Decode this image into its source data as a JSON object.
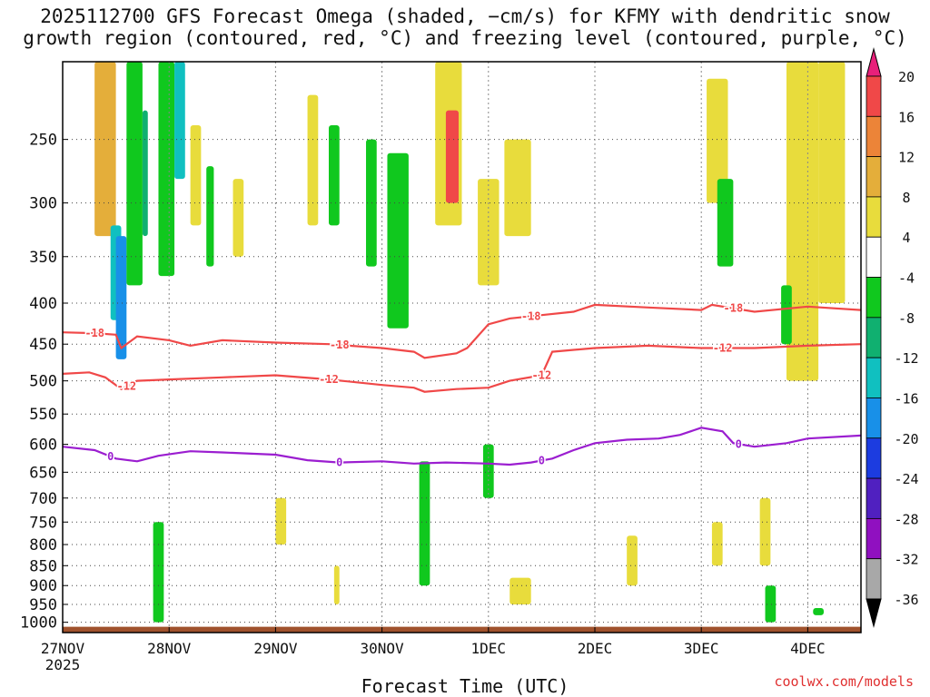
{
  "chart_data": {
    "type": "heatmap",
    "title_line1": "2025112700 GFS Forecast Omega (shaded, −cm/s) for KFMY with dendritic snow",
    "title_line2": "growth region (contoured, red, °C) and freezing level (contoured, purple, °C)",
    "xlabel": "Forecast Time (UTC)",
    "credit": "coolwx.com/models",
    "x_ticks": [
      {
        "label": "27NOV",
        "sub": "2025",
        "day": 0
      },
      {
        "label": "28NOV",
        "sub": "",
        "day": 1
      },
      {
        "label": "29NOV",
        "sub": "",
        "day": 2
      },
      {
        "label": "30NOV",
        "sub": "",
        "day": 3
      },
      {
        "label": "1DEC",
        "sub": "",
        "day": 4
      },
      {
        "label": "2DEC",
        "sub": "",
        "day": 5
      },
      {
        "label": "3DEC",
        "sub": "",
        "day": 6
      },
      {
        "label": "4DEC",
        "sub": "",
        "day": 7
      }
    ],
    "x_range_days": [
      0,
      7.5
    ],
    "y_ticks": [
      250,
      300,
      350,
      400,
      450,
      500,
      550,
      600,
      650,
      700,
      750,
      800,
      850,
      900,
      950,
      1000
    ],
    "y_range_hpa": [
      200,
      1030
    ],
    "colorbar": {
      "labels": [
        "20",
        "16",
        "12",
        "8",
        "4",
        "-4",
        "-8",
        "-12",
        "-16",
        "-20",
        "-24",
        "-28",
        "-32",
        "-36"
      ],
      "colors": [
        "#e8207a",
        "#f04848",
        "#ec8438",
        "#e4ae3a",
        "#e8dc3c",
        "#ffffff",
        "#10c81e",
        "#10b070",
        "#10c0c0",
        "#1890e8",
        "#1c3ce0",
        "#5020c0",
        "#9010c0",
        "#a8a8a8",
        "#000000"
      ]
    },
    "contours": [
      {
        "name": "-18",
        "color": "#f04848",
        "labels": [
          "-18",
          "-18",
          "-18",
          "-18"
        ],
        "label_days": [
          0.3,
          2.6,
          4.4,
          6.3
        ],
        "points": [
          [
            0,
            435
          ],
          [
            0.3,
            436
          ],
          [
            0.5,
            438
          ],
          [
            0.55,
            455
          ],
          [
            0.7,
            440
          ],
          [
            1,
            445
          ],
          [
            1.2,
            452
          ],
          [
            1.5,
            445
          ],
          [
            2,
            448
          ],
          [
            2.5,
            450
          ],
          [
            3,
            455
          ],
          [
            3.3,
            460
          ],
          [
            3.4,
            468
          ],
          [
            3.7,
            462
          ],
          [
            3.8,
            455
          ],
          [
            4,
            425
          ],
          [
            4.2,
            418
          ],
          [
            4.5,
            414
          ],
          [
            4.8,
            410
          ],
          [
            5,
            402
          ],
          [
            5.5,
            405
          ],
          [
            6,
            408
          ],
          [
            6.1,
            402
          ],
          [
            6.5,
            410
          ],
          [
            7,
            404
          ],
          [
            7.5,
            408
          ]
        ]
      },
      {
        "name": "-12",
        "color": "#f04848",
        "labels": [
          "-12",
          "-12",
          "-12",
          "-12"
        ],
        "label_days": [
          0.6,
          2.5,
          4.5,
          6.2
        ],
        "points": [
          [
            0,
            490
          ],
          [
            0.25,
            488
          ],
          [
            0.4,
            495
          ],
          [
            0.55,
            512
          ],
          [
            0.7,
            500
          ],
          [
            1,
            498
          ],
          [
            1.5,
            495
          ],
          [
            2,
            492
          ],
          [
            2.5,
            498
          ],
          [
            3,
            506
          ],
          [
            3.3,
            510
          ],
          [
            3.4,
            516
          ],
          [
            3.7,
            512
          ],
          [
            4,
            510
          ],
          [
            4.2,
            500
          ],
          [
            4.5,
            492
          ],
          [
            4.6,
            460
          ],
          [
            5,
            455
          ],
          [
            5.5,
            452
          ],
          [
            6,
            455
          ],
          [
            6.5,
            455
          ],
          [
            7,
            452
          ],
          [
            7.5,
            450
          ]
        ]
      },
      {
        "name": "0",
        "color": "#9b1ed0",
        "labels": [
          "0",
          "0",
          "0",
          "0"
        ],
        "label_days": [
          0.45,
          2.6,
          4.5,
          6.35
        ],
        "points": [
          [
            0,
            604
          ],
          [
            0.3,
            610
          ],
          [
            0.5,
            625
          ],
          [
            0.7,
            630
          ],
          [
            0.9,
            620
          ],
          [
            1.2,
            612
          ],
          [
            1.5,
            614
          ],
          [
            2,
            618
          ],
          [
            2.3,
            628
          ],
          [
            2.6,
            632
          ],
          [
            3,
            630
          ],
          [
            3.3,
            634
          ],
          [
            3.6,
            632
          ],
          [
            4,
            634
          ],
          [
            4.2,
            636
          ],
          [
            4.4,
            632
          ],
          [
            4.6,
            625
          ],
          [
            4.8,
            610
          ],
          [
            5,
            598
          ],
          [
            5.3,
            592
          ],
          [
            5.6,
            590
          ],
          [
            5.8,
            584
          ],
          [
            6,
            572
          ],
          [
            6.2,
            578
          ],
          [
            6.3,
            598
          ],
          [
            6.5,
            604
          ],
          [
            6.8,
            598
          ],
          [
            7,
            590
          ],
          [
            7.5,
            585
          ]
        ]
      }
    ],
    "omega_cells": [
      [
        0.3,
        0.5,
        200,
        330,
        "#e4ae3a"
      ],
      [
        0.45,
        0.55,
        320,
        420,
        "#10c0c0"
      ],
      [
        0.5,
        0.6,
        330,
        470,
        "#1890e8"
      ],
      [
        0.6,
        0.75,
        200,
        380,
        "#10c81e"
      ],
      [
        0.75,
        0.8,
        230,
        330,
        "#10b070"
      ],
      [
        0.9,
        1.05,
        200,
        370,
        "#10c81e"
      ],
      [
        1.05,
        1.15,
        200,
        280,
        "#10c0c0"
      ],
      [
        1.2,
        1.3,
        240,
        320,
        "#e8dc3c"
      ],
      [
        1.35,
        1.42,
        270,
        360,
        "#10c81e"
      ],
      [
        1.6,
        1.7,
        280,
        350,
        "#e8dc3c"
      ],
      [
        2.3,
        2.4,
        220,
        320,
        "#e8dc3c"
      ],
      [
        2.5,
        2.6,
        240,
        320,
        "#10c81e"
      ],
      [
        2.85,
        2.95,
        250,
        360,
        "#10c81e"
      ],
      [
        3.05,
        3.25,
        260,
        430,
        "#10c81e"
      ],
      [
        3.5,
        3.75,
        200,
        320,
        "#e8dc3c"
      ],
      [
        3.6,
        3.72,
        230,
        300,
        "#f04848"
      ],
      [
        3.9,
        4.1,
        280,
        380,
        "#e8dc3c"
      ],
      [
        4.15,
        4.4,
        250,
        330,
        "#e8dc3c"
      ],
      [
        6.05,
        6.25,
        210,
        300,
        "#e8dc3c"
      ],
      [
        6.15,
        6.3,
        280,
        360,
        "#10c81e"
      ],
      [
        6.8,
        7.1,
        200,
        500,
        "#e8dc3c"
      ],
      [
        7.1,
        7.35,
        200,
        400,
        "#e8dc3c"
      ],
      [
        6.75,
        6.85,
        380,
        450,
        "#10c81e"
      ],
      [
        3.95,
        4.05,
        600,
        700,
        "#10c81e"
      ],
      [
        2.0,
        2.1,
        700,
        800,
        "#e8dc3c"
      ],
      [
        2.55,
        2.6,
        850,
        950,
        "#e8dc3c"
      ],
      [
        0.85,
        0.95,
        750,
        1000,
        "#10c81e"
      ],
      [
        3.35,
        3.45,
        630,
        900,
        "#10c81e"
      ],
      [
        5.3,
        5.4,
        780,
        900,
        "#e8dc3c"
      ],
      [
        6.1,
        6.2,
        750,
        850,
        "#e8dc3c"
      ],
      [
        6.55,
        6.65,
        700,
        850,
        "#e8dc3c"
      ],
      [
        6.6,
        6.7,
        900,
        1000,
        "#10c81e"
      ],
      [
        7.05,
        7.15,
        960,
        980,
        "#10c81e"
      ],
      [
        4.2,
        4.4,
        880,
        950,
        "#e8dc3c"
      ]
    ]
  }
}
